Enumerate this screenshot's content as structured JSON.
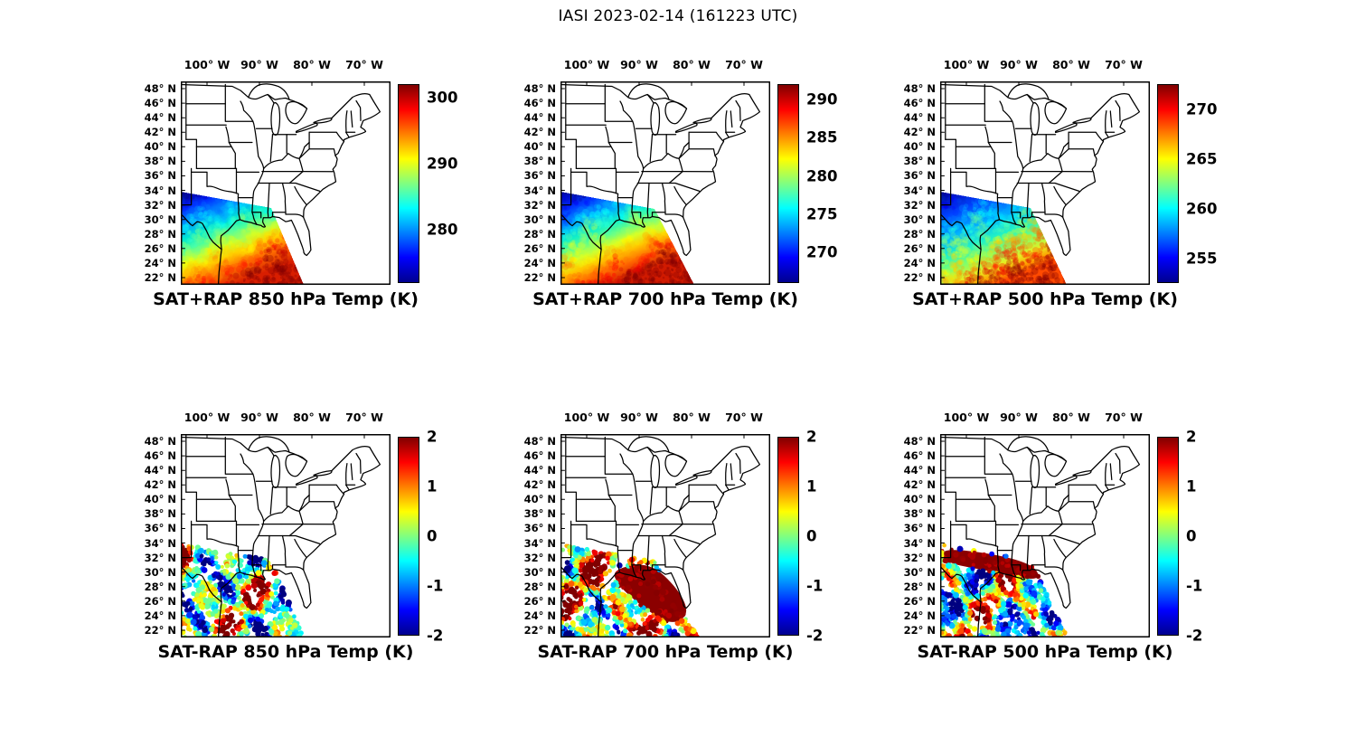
{
  "title": "IASI 2023-02-14 (161223 UTC)",
  "chart_data": {
    "type": "heatmap",
    "title": "IASI 2023-02-14 (161223 UTC)",
    "description": "Six-panel IASI sounding figure over the central and eastern United States. Top row: SAT+RAP retrieved temperature (K) at 850, 700 and 500 hPa shown as a smooth jet-colored satellite swath over Texas and the Gulf Coast (cold blues to the northwest, warm oranges and reds to the south). Bottom row: SAT-RAP temperature difference (K) at the same levels shown as scattered colored dots in the same swath, colorbar range -2 to 2 K.",
    "colormap": "jet",
    "colormap_stops": [
      "#00008F",
      "#0000FF",
      "#0080FF",
      "#00FFFF",
      "#80FF80",
      "#FFFF00",
      "#FF8000",
      "#FF0000",
      "#800000"
    ],
    "lon_axis": {
      "labels": [
        "100° W",
        "90° W",
        "80° W",
        "70° W"
      ],
      "values": [
        -100,
        -90,
        -80,
        -70
      ]
    },
    "lat_axis": {
      "labels": [
        "48° N",
        "46° N",
        "44° N",
        "42° N",
        "40° N",
        "38° N",
        "36° N",
        "34° N",
        "32° N",
        "30° N",
        "28° N",
        "26° N",
        "24° N",
        "22° N"
      ],
      "values": [
        48,
        46,
        44,
        42,
        40,
        38,
        36,
        34,
        32,
        30,
        28,
        26,
        24,
        22
      ]
    },
    "panels": [
      {
        "caption": "SAT+RAP 850 hPa Temp (K)",
        "kind": "retrieval",
        "level_hPa": 850,
        "colorbar": {
          "min": 272,
          "max": 302,
          "ticks": [
            280,
            290,
            300
          ]
        },
        "swath": {
          "style": "gradient",
          "seed": 11,
          "polygon": [
            [
              0,
              122
            ],
            [
              100,
              140
            ],
            [
              136,
              225
            ],
            [
              0,
              225
            ]
          ],
          "stops": [
            [
              0,
              "#000899"
            ],
            [
              0.16,
              "#0030FF"
            ],
            [
              0.3,
              "#00A0FF"
            ],
            [
              0.42,
              "#00E8D0"
            ],
            [
              0.52,
              "#4CFF9C"
            ],
            [
              0.62,
              "#C8FF30"
            ],
            [
              0.72,
              "#FFD400"
            ],
            [
              0.84,
              "#FF7000"
            ],
            [
              1,
              "#D81E00"
            ]
          ]
        }
      },
      {
        "caption": "SAT+RAP 700 hPa Temp (K)",
        "kind": "retrieval",
        "level_hPa": 700,
        "colorbar": {
          "min": 266,
          "max": 292,
          "ticks": [
            270,
            275,
            280,
            285,
            290
          ]
        },
        "swath": {
          "style": "gradient",
          "seed": 23,
          "polygon": [
            [
              0,
              122
            ],
            [
              104,
              141
            ],
            [
              148,
              225
            ],
            [
              0,
              225
            ]
          ],
          "stops": [
            [
              0,
              "#000899"
            ],
            [
              0.17,
              "#0038FF"
            ],
            [
              0.32,
              "#00A8FF"
            ],
            [
              0.44,
              "#10F0C8"
            ],
            [
              0.54,
              "#60FF88"
            ],
            [
              0.64,
              "#D6FF28"
            ],
            [
              0.74,
              "#FFC800"
            ],
            [
              0.86,
              "#FF6600"
            ],
            [
              1,
              "#D01A00"
            ]
          ]
        }
      },
      {
        "caption": "SAT+RAP 500 hPa Temp (K)",
        "kind": "retrieval",
        "level_hPa": 500,
        "colorbar": {
          "min": 252.5,
          "max": 272.5,
          "ticks": [
            255,
            260,
            265,
            270
          ]
        },
        "swath": {
          "style": "gradient",
          "seed": 37,
          "polygon": [
            [
              0,
              122
            ],
            [
              100,
              140
            ],
            [
              140,
              225
            ],
            [
              0,
              225
            ]
          ],
          "stops": [
            [
              0,
              "#000C99"
            ],
            [
              0.22,
              "#0040FF"
            ],
            [
              0.42,
              "#00B4FF"
            ],
            [
              0.58,
              "#22F2C4"
            ],
            [
              0.72,
              "#86FF66"
            ],
            [
              0.84,
              "#E6EE20"
            ],
            [
              0.93,
              "#FFA000"
            ],
            [
              1,
              "#FF4A00"
            ]
          ]
        }
      },
      {
        "caption": "SAT-RAP 850 hPa Temp (K)",
        "kind": "difference",
        "level_hPa": 850,
        "colorbar": {
          "min": -2,
          "max": 2,
          "ticks": [
            2,
            1,
            0,
            -1,
            -2
          ]
        },
        "swath": {
          "style": "dots",
          "seed": 51,
          "dots": 800,
          "bias": 0,
          "polygon": [
            [
              0,
              122
            ],
            [
              100,
              140
            ],
            [
              136,
              225
            ],
            [
              0,
              225
            ]
          ],
          "patches": []
        }
      },
      {
        "caption": "SAT-RAP 700 hPa Temp (K)",
        "kind": "difference",
        "level_hPa": 700,
        "colorbar": {
          "min": -2,
          "max": 2,
          "ticks": [
            2,
            1,
            0,
            -1,
            -2
          ]
        },
        "swath": {
          "style": "dots",
          "seed": 67,
          "dots": 760,
          "bias": 0.1,
          "polygon": [
            [
              0,
              122
            ],
            [
              104,
              141
            ],
            [
              152,
              225
            ],
            [
              0,
              225
            ]
          ],
          "patches": [
            {
              "color": "#8B0000",
              "points": [
                [
                  57,
                  150
                ],
                [
                  98,
                  141
                ],
                [
                  131,
                  172
                ],
                [
                  143,
                  200
                ],
                [
                  121,
                  212
                ],
                [
                  84,
                  186
                ],
                [
                  63,
                  166
                ]
              ]
            }
          ]
        }
      },
      {
        "caption": "SAT-RAP 500 hPa Temp (K)",
        "kind": "difference",
        "level_hPa": 500,
        "colorbar": {
          "min": -2,
          "max": 2,
          "ticks": [
            2,
            1,
            0,
            -1,
            -2
          ]
        },
        "swath": {
          "style": "dots",
          "seed": 83,
          "dots": 780,
          "bias": -0.04,
          "polygon": [
            [
              0,
              122
            ],
            [
              100,
              140
            ],
            [
              142,
              225
            ],
            [
              0,
              225
            ]
          ],
          "patches": [
            {
              "color": "#8B0000",
              "points": [
                [
                  2,
                  124
                ],
                [
                  100,
                  140
                ],
                [
                  114,
                  164
                ],
                [
                  58,
                  152
                ],
                [
                  2,
                  142
                ]
              ]
            }
          ]
        }
      }
    ]
  }
}
